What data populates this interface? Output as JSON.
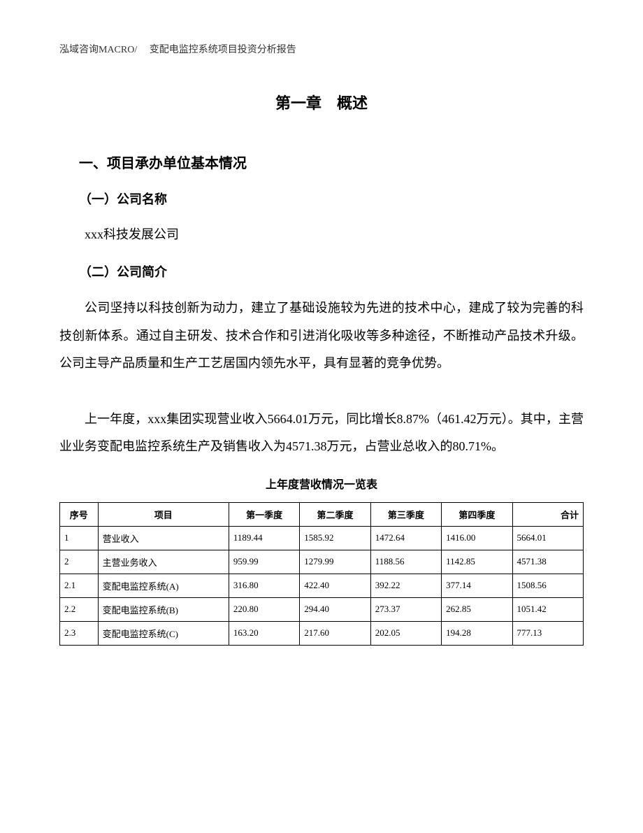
{
  "header": "泓域咨询MACRO/　 变配电监控系统项目投资分析报告",
  "chapter_title": "第一章　概述",
  "section_1_title": "一、项目承办单位基本情况",
  "subsection_1_title": "（一）公司名称",
  "company_name": "xxx科技发展公司",
  "subsection_2_title": "（二）公司简介",
  "paragraph_1": "公司坚持以科技创新为动力，建立了基础设施较为先进的技术中心，建成了较为完善的科技创新体系。通过自主研发、技术合作和引进消化吸收等多种途径，不断推动产品技术升级。公司主导产品质量和生产工艺居国内领先水平，具有显著的竞争优势。",
  "paragraph_2": "上一年度，xxx集团实现营业收入5664.01万元，同比增长8.87%（461.42万元）。其中，主营业业务变配电监控系统生产及销售收入为4571.38万元，占营业总收入的80.71%。",
  "table_title": "上年度营收情况一览表",
  "table": {
    "columns": [
      "序号",
      "项目",
      "第一季度",
      "第二季度",
      "第三季度",
      "第四季度",
      "合计"
    ],
    "rows": [
      [
        "1",
        "营业收入",
        "1189.44",
        "1585.92",
        "1472.64",
        "1416.00",
        "5664.01"
      ],
      [
        "2",
        "主营业务收入",
        "959.99",
        "1279.99",
        "1188.56",
        "1142.85",
        "4571.38"
      ],
      [
        "2.1",
        "变配电监控系统(A)",
        "316.80",
        "422.40",
        "392.22",
        "377.14",
        "1508.56"
      ],
      [
        "2.2",
        "变配电监控系统(B)",
        "220.80",
        "294.40",
        "273.37",
        "262.85",
        "1051.42"
      ],
      [
        "2.3",
        "变配电监控系统(C)",
        "163.20",
        "217.60",
        "202.05",
        "194.28",
        "777.13"
      ]
    ],
    "col_widths": [
      "7%",
      "24%",
      "13%",
      "13%",
      "13%",
      "13%",
      "13%"
    ],
    "border_color": "#000000",
    "header_fontsize": 13,
    "cell_fontsize": 13
  },
  "styles": {
    "background_color": "#ffffff",
    "text_color": "#000000",
    "header_text_color": "#333333",
    "body_fontsize": 18,
    "chapter_title_fontsize": 22,
    "section_title_fontsize": 20,
    "subsection_title_fontsize": 18,
    "line_height": 2.2
  }
}
